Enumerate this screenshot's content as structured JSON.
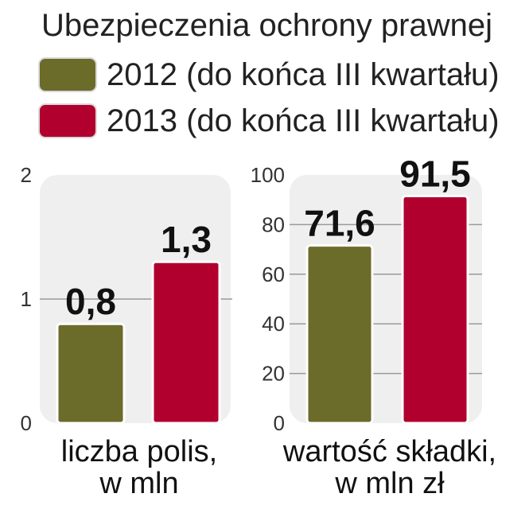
{
  "title": "Ubezpieczenia ochrony prawnej",
  "legend": [
    {
      "label": "2012 (do końca III kwartału)",
      "color": "#6b6b2a"
    },
    {
      "label": "2013 (do końca III kwartału)",
      "color": "#b1002d"
    }
  ],
  "chart_data": [
    {
      "type": "bar",
      "categories": [
        "2012 (do końca III kwartału)",
        "2013 (do końca III kwartału)"
      ],
      "values": [
        0.8,
        1.3
      ],
      "value_labels": [
        "0,8",
        "1,3"
      ],
      "ylim": [
        0,
        2
      ],
      "yticks": [
        "0",
        "1",
        "2"
      ],
      "xlabel_line1": "liczba polis,",
      "xlabel_line2": "w mln"
    },
    {
      "type": "bar",
      "categories": [
        "2012 (do końca III kwartału)",
        "2013 (do końca III kwartału)"
      ],
      "values": [
        71.6,
        91.5
      ],
      "value_labels": [
        "71,6",
        "91,5"
      ],
      "ylim": [
        0,
        100
      ],
      "yticks": [
        "0",
        "20",
        "40",
        "60",
        "80",
        "100"
      ],
      "xlabel_line1": "wartość składki,",
      "xlabel_line2": "w mln zł"
    }
  ]
}
